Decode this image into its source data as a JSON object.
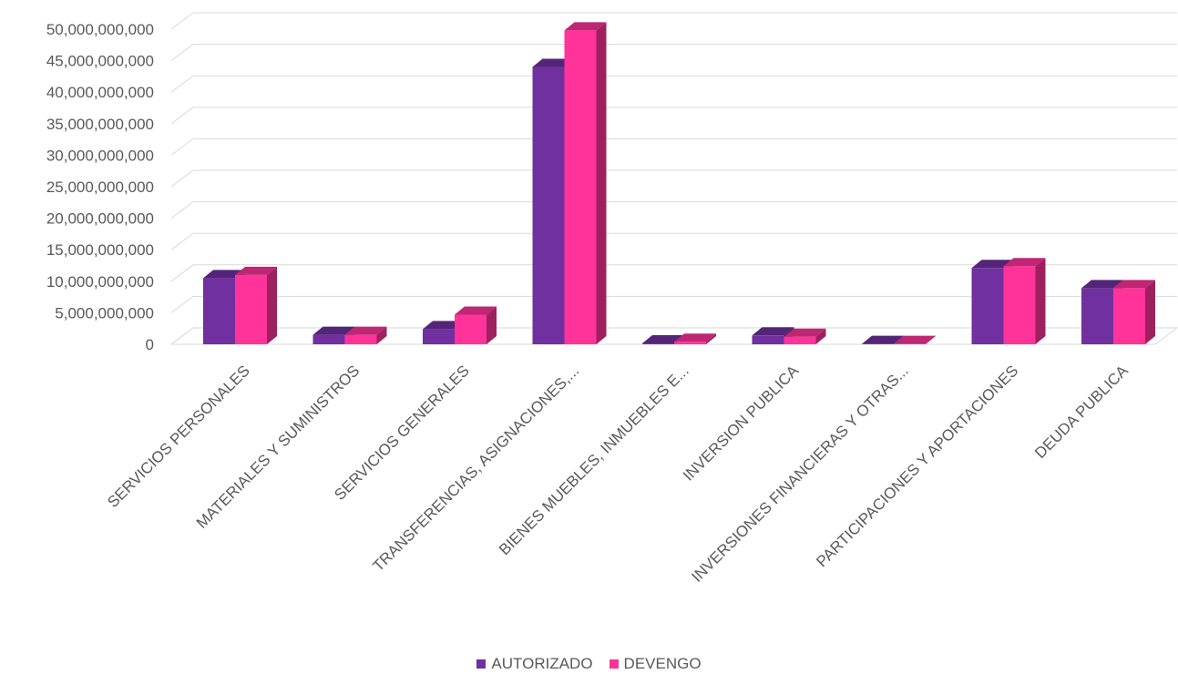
{
  "chart_data": {
    "type": "bar",
    "categories": [
      "SERVICIOS PERSONALES",
      "MATERIALES Y SUMINISTROS",
      "SERVICIOS GENERALES",
      "TRANSFERENCIAS, ASIGNACIONES,...",
      "BIENES MUEBLES, INMUEBLES E...",
      "INVERSION PUBLICA",
      "INVERSIONES FINANCIERAS Y OTRAS...",
      "PARTICIPACIONES Y APORTACIONES",
      "DEUDA PUBLICA"
    ],
    "series": [
      {
        "name": "AUTORIZADO",
        "color": "#7030A0",
        "values": [
          10500000000,
          1500000000,
          2400000000,
          44000000000,
          150000000,
          1400000000,
          50000000,
          12100000000,
          8900000000
        ]
      },
      {
        "name": "DEVENGO",
        "color": "#FF3399",
        "values": [
          11000000000,
          1500000000,
          4700000000,
          49800000000,
          400000000,
          1200000000,
          50000000,
          12400000000,
          8900000000
        ]
      }
    ],
    "ylim": [
      0,
      50000000000
    ],
    "yticks": [
      "0",
      "5,000,000,000",
      "10,000,000,000",
      "15,000,000,000",
      "20,000,000,000",
      "25,000,000,000",
      "30,000,000,000",
      "35,000,000,000",
      "40,000,000,000",
      "45,000,000,000",
      "50,000,000,000"
    ],
    "title": "",
    "xlabel": "",
    "ylabel": "",
    "grid": true,
    "legend_position": "bottom"
  }
}
